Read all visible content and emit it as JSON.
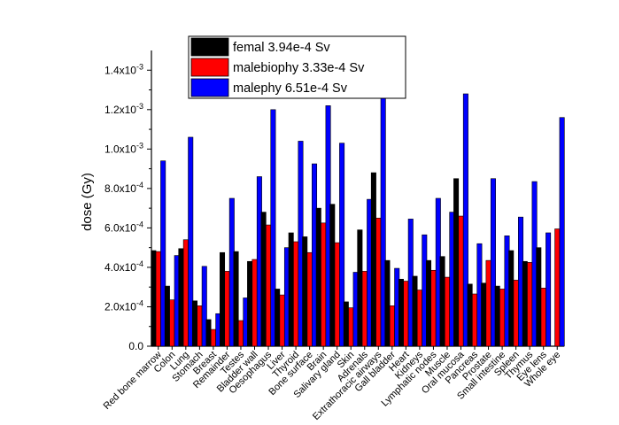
{
  "chart_data": {
    "type": "bar",
    "ylabel": "dose (Gy)",
    "xlabel": "",
    "ylim": [
      0,
      0.0015
    ],
    "yticks": [
      {
        "value": 0,
        "mantissa": "0.0",
        "exponent": ""
      },
      {
        "value": 0.0002,
        "mantissa": "2.0x10",
        "exponent": "-4"
      },
      {
        "value": 0.0004,
        "mantissa": "4.0x10",
        "exponent": "-4"
      },
      {
        "value": 0.0006,
        "mantissa": "6.0x10",
        "exponent": "-4"
      },
      {
        "value": 0.0008,
        "mantissa": "8.0x10",
        "exponent": "-4"
      },
      {
        "value": 0.001,
        "mantissa": "1.0x10",
        "exponent": "-3"
      },
      {
        "value": 0.0012,
        "mantissa": "1.2x10",
        "exponent": "-3"
      },
      {
        "value": 0.0014,
        "mantissa": "1.4x10",
        "exponent": "-3"
      }
    ],
    "legend_position": "top-center",
    "categories": [
      "Red bone marrow",
      "Colon",
      "Lung",
      "Stomach",
      "Breast",
      "Remainder",
      "Testes",
      "Bladder wall",
      "Oesophagus",
      "Liver",
      "Thyroid",
      "Bone surface",
      "Brain",
      "Salivary gland",
      "Skin",
      "Adrenals",
      "Extrathoracic airways",
      "Gall bladder",
      "Heart",
      "Kidneys",
      "Lymphatic nodes",
      "Muscle",
      "Oral mucosa",
      "Pancreas",
      "Prostate",
      "Small intestine",
      "Spleen",
      "Thymus",
      "Eye lens",
      "Whole eye"
    ],
    "series": [
      {
        "name": "femal  3.94e-4 Sv",
        "color": "#000000",
        "values": [
          0.000485,
          0.000305,
          0.000495,
          0.00023,
          0.000135,
          0.000475,
          0.00048,
          0.00043,
          0.00068,
          0.00029,
          0.000575,
          0.000555,
          0.0007,
          0.00072,
          0.000225,
          0.00059,
          0.00088,
          0.000435,
          0.00034,
          0.000355,
          0.000435,
          0.000455,
          0.00085,
          0.000315,
          0.00032,
          0.000305,
          0.000485,
          0.00043,
          0.0005,
          0.0
        ]
      },
      {
        "name": "malebiophy 3.33e-4 Sv",
        "color": "#ff0000",
        "values": [
          0.00048,
          0.000235,
          0.00054,
          0.000205,
          8.5e-05,
          0.00038,
          0.00013,
          0.00044,
          0.000615,
          0.00026,
          0.00053,
          0.000475,
          0.000625,
          0.000525,
          0.000195,
          0.00038,
          0.00065,
          0.000205,
          0.00033,
          0.000285,
          0.000385,
          0.00035,
          0.00066,
          0.000265,
          0.000435,
          0.00029,
          0.000335,
          0.000425,
          0.000295,
          0.000595
        ]
      },
      {
        "name": "malephy 6.51e-4 Sv",
        "color": "#0000ff",
        "values": [
          0.00094,
          0.00046,
          0.00106,
          0.000405,
          0.000165,
          0.00075,
          0.000245,
          0.00086,
          0.0012,
          0.0005,
          0.00104,
          0.000925,
          0.00122,
          0.00103,
          0.000375,
          0.000745,
          0.00128,
          0.000395,
          0.000645,
          0.000565,
          0.00075,
          0.00068,
          0.00128,
          0.00052,
          0.00085,
          0.00056,
          0.000655,
          0.000835,
          0.000575,
          0.00116
        ]
      }
    ]
  }
}
